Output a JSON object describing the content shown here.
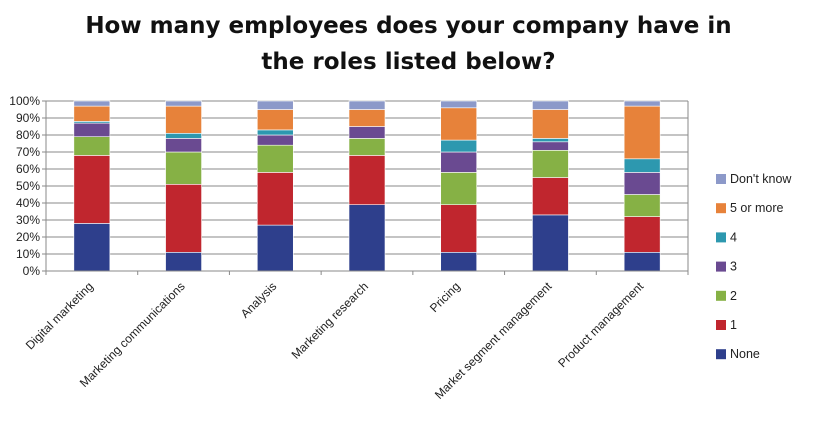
{
  "chart_data": {
    "type": "bar",
    "stacked": true,
    "title_line1": "How many employees does your company have in",
    "title_line2": "the roles listed below?",
    "categories": [
      "Digital marketing",
      "Marketing communications",
      "Analysis",
      "Marketing research",
      "Pricing",
      "Market segment management",
      "Product management"
    ],
    "y_ticks": [
      "0%",
      "10%",
      "20%",
      "30%",
      "40%",
      "50%",
      "60%",
      "70%",
      "80%",
      "90%",
      "100%"
    ],
    "ylim": [
      0,
      100
    ],
    "grid": true,
    "legend_position": "right",
    "series": [
      {
        "name": "None",
        "color": "#2E3F8C",
        "values": [
          28,
          11,
          27,
          39,
          11,
          33,
          11
        ]
      },
      {
        "name": "1",
        "color": "#C0262E",
        "values": [
          40,
          40,
          31,
          29,
          28,
          22,
          21
        ]
      },
      {
        "name": "2",
        "color": "#86B145",
        "values": [
          11,
          19,
          16,
          10,
          19,
          16,
          13
        ]
      },
      {
        "name": "3",
        "color": "#6A4A91",
        "values": [
          8,
          8,
          6,
          7,
          12,
          5,
          13
        ]
      },
      {
        "name": "4",
        "color": "#2D98AF",
        "values": [
          1,
          3,
          3,
          0,
          7,
          2,
          8
        ]
      },
      {
        "name": "5 or more",
        "color": "#E7823A",
        "values": [
          9,
          16,
          12,
          10,
          19,
          17,
          31
        ]
      },
      {
        "name": "Don't know",
        "color": "#8C99C9",
        "values": [
          3,
          3,
          5,
          5,
          4,
          5,
          3
        ]
      }
    ]
  }
}
